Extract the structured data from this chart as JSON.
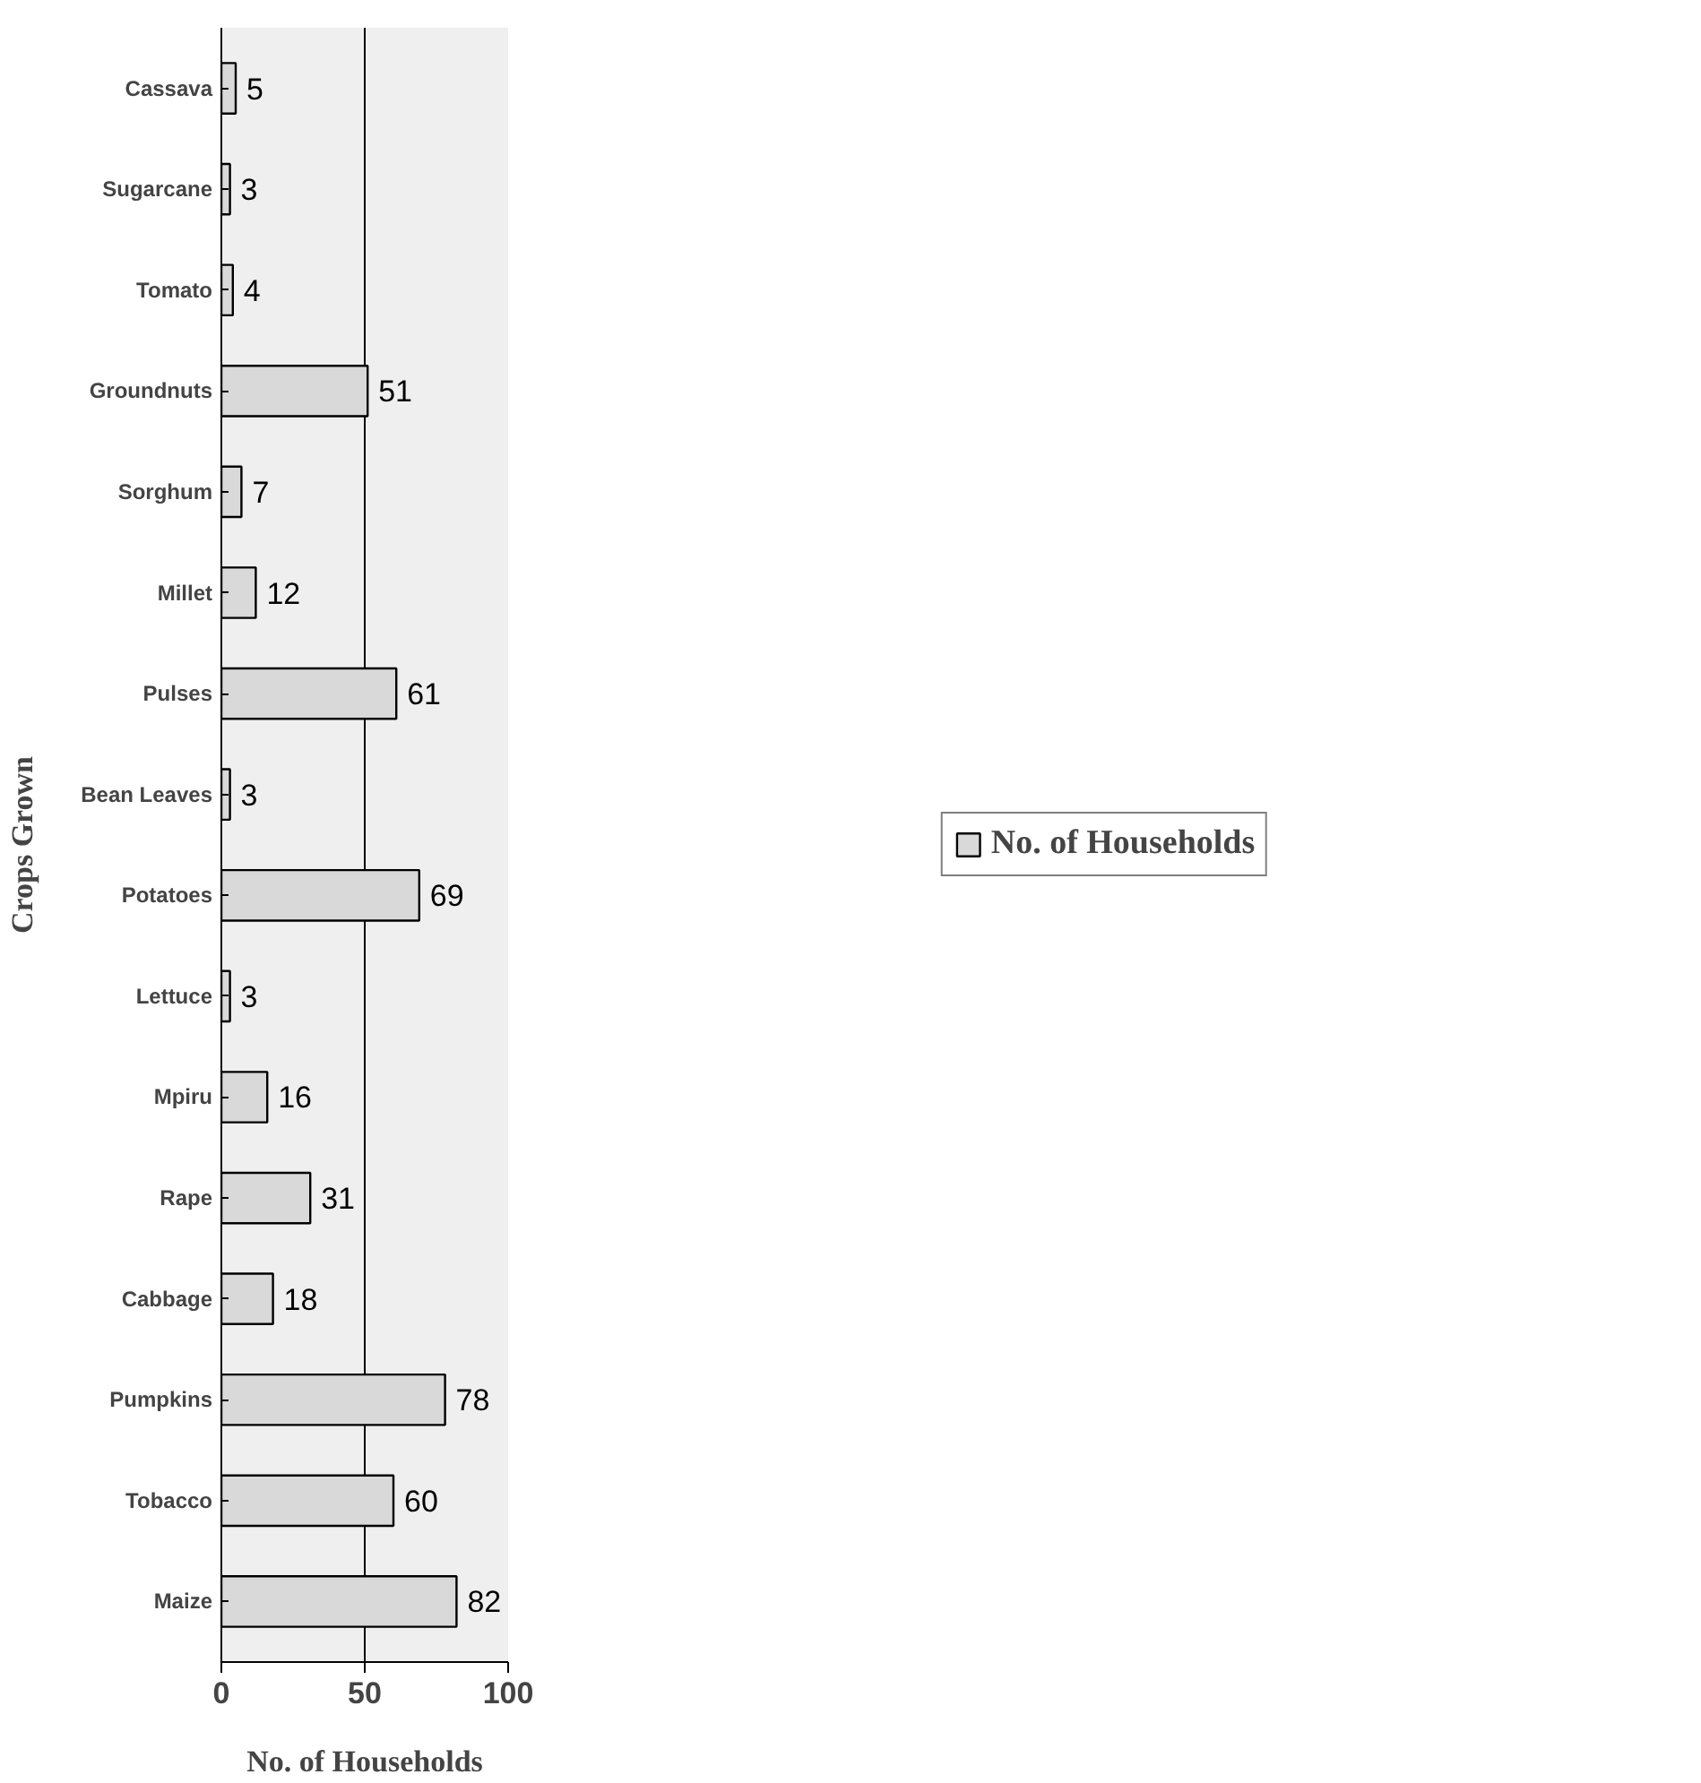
{
  "chart_data": {
    "type": "bar",
    "orientation": "horizontal",
    "categories": [
      "Cassava",
      "Sugarcane",
      "Tomato",
      "Groundnuts",
      "Sorghum",
      "Millet",
      "Pulses",
      "Bean Leaves",
      "Potatoes",
      "Lettuce",
      "Mpiru",
      "Rape",
      "Cabbage",
      "Pumpkins",
      "Tobacco",
      "Maize"
    ],
    "series": [
      {
        "name": "No. of Households",
        "color": "#d9d9d9",
        "values": [
          5,
          3,
          4,
          51,
          7,
          12,
          61,
          3,
          69,
          3,
          16,
          31,
          18,
          78,
          60,
          82
        ]
      }
    ],
    "xlabel": "No. of Households",
    "ylabel": "Crops Grown",
    "xlim": [
      0,
      100
    ],
    "xticks": [
      0,
      50,
      100
    ],
    "grid": "x",
    "legend": "right",
    "data_labels": true
  }
}
